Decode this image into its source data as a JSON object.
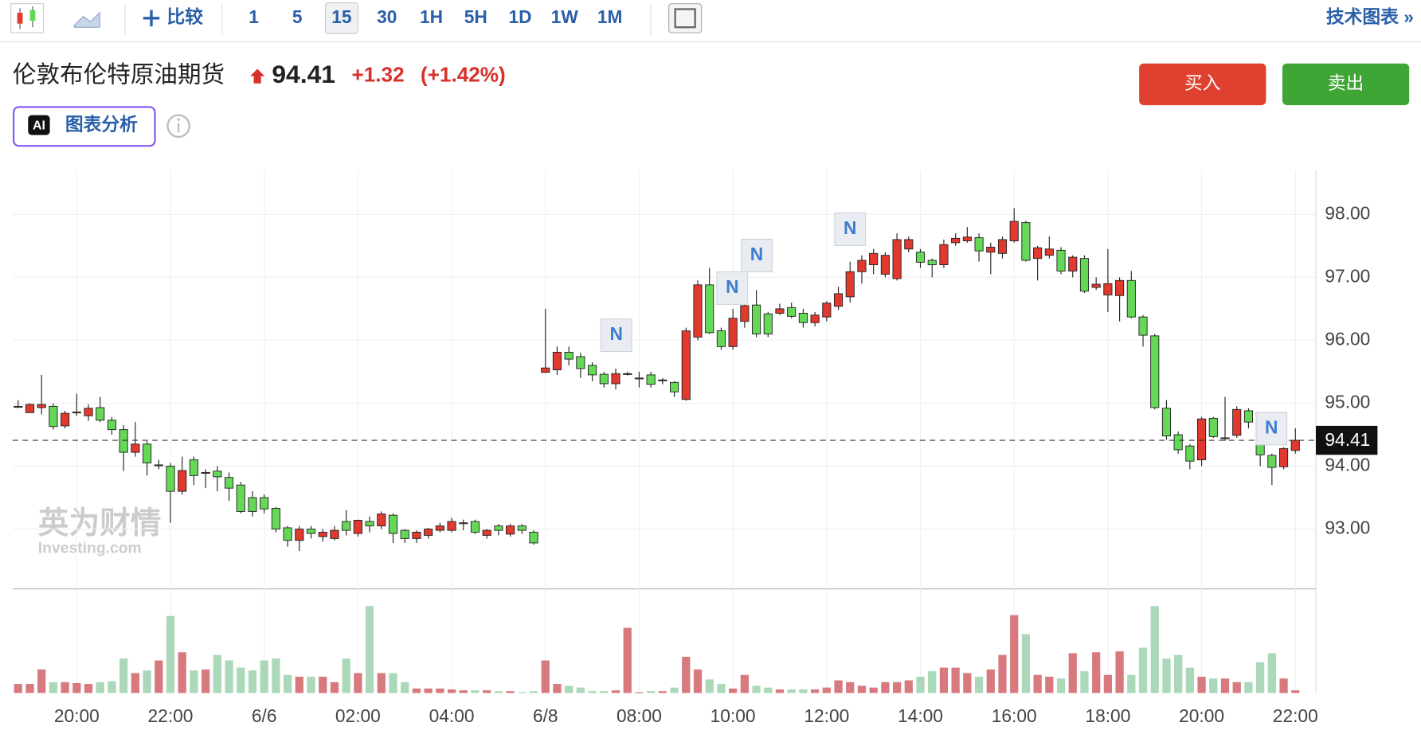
{
  "ui": {
    "compare": "比较",
    "intervals": [
      "1",
      "5",
      "15",
      "30",
      "1H",
      "5H",
      "1D",
      "1W",
      "1M"
    ],
    "tech_chart": "技术图表 »",
    "ai_badge": "AI",
    "ai_analysis": "图表分析",
    "buy": "买入",
    "sell": "卖出",
    "watermark_cn": "英为财情",
    "watermark_en": "Investing.com",
    "selected_interval": "15"
  },
  "chart_data": {
    "type": "candlestick",
    "title": "伦敦布伦特原油期货",
    "last_price": 94.41,
    "change": "+1.32",
    "change_pct": "(+1.42%)",
    "categories": [
      null,
      null,
      null,
      null,
      null,
      "20:00",
      null,
      null,
      null,
      null,
      null,
      null,
      null,
      "22:00",
      null,
      null,
      null,
      null,
      null,
      null,
      null,
      "6/6",
      null,
      null,
      null,
      null,
      null,
      null,
      null,
      "02:00",
      null,
      null,
      null,
      null,
      null,
      null,
      null,
      "04:00",
      null,
      null,
      null,
      null,
      null,
      null,
      null,
      "6/8",
      null,
      null,
      null,
      null,
      null,
      null,
      null,
      "08:00",
      null,
      null,
      null,
      null,
      null,
      null,
      null,
      "10:00",
      null,
      null,
      null,
      null,
      null,
      null,
      null,
      "12:00",
      null,
      null,
      null,
      null,
      null,
      null,
      null,
      "14:00",
      null,
      null,
      null,
      null,
      null,
      null,
      null,
      "16:00",
      null,
      null,
      null,
      null,
      null,
      null,
      null,
      "18:00",
      null,
      null,
      null,
      null,
      null,
      null,
      null,
      "20:00",
      null,
      null,
      null,
      null,
      null,
      null,
      null,
      "22:00"
    ],
    "open": [
      94.95,
      94.85,
      94.93,
      94.95,
      94.64,
      94.86,
      94.8,
      94.93,
      94.73,
      94.58,
      94.22,
      94.35,
      94.02,
      94.0,
      93.6,
      94.1,
      93.9,
      93.92,
      93.82,
      93.7,
      93.5,
      93.5,
      93.33,
      93.02,
      92.82,
      93.0,
      92.88,
      92.85,
      93.12,
      92.93,
      93.12,
      93.05,
      93.22,
      92.98,
      92.85,
      92.9,
      92.98,
      92.98,
      93.1,
      93.12,
      92.9,
      93.05,
      92.92,
      93.05,
      92.95,
      95.49,
      95.53,
      95.81,
      95.74,
      95.6,
      95.46,
      95.31,
      95.47,
      95.4,
      95.45,
      95.37,
      95.33,
      95.06,
      96.05,
      96.88,
      96.15,
      95.9,
      96.3,
      96.56,
      96.42,
      96.43,
      96.52,
      96.43,
      96.28,
      96.37,
      96.54,
      96.69,
      97.09,
      97.2,
      97.05,
      96.98,
      97.45,
      97.4,
      97.27,
      97.2,
      97.55,
      97.58,
      97.63,
      97.4,
      97.38,
      97.58,
      97.87,
      97.3,
      97.35,
      97.43,
      97.1,
      97.3,
      96.84,
      96.72,
      96.71,
      96.95,
      96.37,
      96.07,
      94.92,
      94.5,
      94.32,
      94.1,
      94.76,
      94.45,
      94.49,
      94.88,
      94.35,
      94.17,
      93.99,
      94.25
    ],
    "high": [
      95.05,
      95.0,
      95.45,
      95.0,
      94.88,
      95.15,
      94.98,
      95.1,
      94.78,
      94.65,
      94.7,
      94.4,
      94.1,
      94.05,
      94.15,
      94.15,
      93.95,
      94.0,
      93.9,
      93.75,
      93.6,
      93.55,
      93.35,
      93.05,
      93.05,
      93.05,
      93.0,
      93.05,
      93.3,
      93.15,
      93.2,
      93.28,
      93.25,
      93.0,
      92.98,
      93.02,
      93.1,
      93.18,
      93.15,
      93.15,
      93.0,
      93.08,
      93.08,
      93.08,
      92.98,
      96.5,
      95.9,
      95.9,
      95.8,
      95.65,
      95.5,
      95.55,
      95.5,
      95.5,
      95.5,
      95.4,
      95.35,
      96.2,
      96.95,
      97.15,
      96.2,
      96.5,
      96.6,
      96.8,
      96.45,
      96.58,
      96.6,
      96.5,
      96.45,
      96.62,
      96.85,
      97.25,
      97.35,
      97.45,
      97.4,
      97.7,
      97.65,
      97.45,
      97.3,
      97.6,
      97.7,
      97.8,
      97.7,
      97.55,
      97.65,
      98.1,
      97.9,
      97.5,
      97.65,
      97.48,
      97.35,
      97.35,
      97.0,
      97.45,
      97.0,
      97.1,
      96.4,
      96.1,
      95.05,
      94.55,
      94.35,
      94.78,
      94.78,
      95.1,
      94.95,
      94.92,
      94.42,
      94.2,
      94.3,
      94.6
    ],
    "low": [
      94.92,
      94.85,
      94.82,
      94.58,
      94.6,
      94.8,
      94.72,
      94.7,
      94.5,
      93.92,
      94.15,
      93.85,
      93.95,
      93.1,
      93.55,
      93.7,
      93.65,
      93.6,
      93.45,
      93.25,
      93.2,
      93.25,
      92.95,
      92.72,
      92.65,
      92.85,
      92.8,
      92.82,
      92.9,
      92.88,
      92.95,
      93.0,
      92.78,
      92.78,
      92.78,
      92.85,
      92.95,
      92.95,
      92.98,
      92.92,
      92.85,
      92.9,
      92.88,
      92.92,
      92.75,
      95.48,
      95.45,
      95.6,
      95.4,
      95.35,
      95.25,
      95.22,
      95.44,
      95.25,
      95.25,
      95.3,
      95.1,
      95.04,
      96.0,
      96.1,
      95.85,
      95.85,
      96.2,
      96.05,
      96.05,
      96.4,
      96.35,
      96.2,
      96.22,
      96.3,
      96.48,
      96.6,
      96.9,
      97.05,
      97.0,
      96.95,
      97.4,
      97.15,
      97.0,
      97.15,
      97.5,
      97.55,
      97.25,
      97.05,
      97.3,
      97.55,
      97.25,
      96.95,
      97.3,
      97.05,
      97.0,
      96.75,
      96.8,
      96.45,
      96.3,
      96.35,
      95.9,
      94.9,
      94.42,
      94.2,
      93.95,
      94.0,
      94.45,
      94.4,
      94.45,
      94.6,
      94.0,
      93.7,
      93.95,
      94.2
    ],
    "close": [
      94.95,
      94.98,
      94.98,
      94.63,
      94.84,
      94.86,
      94.92,
      94.73,
      94.58,
      94.22,
      94.35,
      94.05,
      94.02,
      93.6,
      93.93,
      93.85,
      93.9,
      93.83,
      93.65,
      93.28,
      93.28,
      93.32,
      93.0,
      92.82,
      93.0,
      92.93,
      92.95,
      92.98,
      92.98,
      93.14,
      93.05,
      93.24,
      92.93,
      92.85,
      92.95,
      93.0,
      93.05,
      93.12,
      93.1,
      92.95,
      92.98,
      92.98,
      93.05,
      92.98,
      92.78,
      95.56,
      95.81,
      95.7,
      95.55,
      95.45,
      95.31,
      95.47,
      95.47,
      95.4,
      95.3,
      95.37,
      95.18,
      96.15,
      96.88,
      96.12,
      95.9,
      96.35,
      96.55,
      96.1,
      96.1,
      96.5,
      96.38,
      96.28,
      96.4,
      96.59,
      96.74,
      97.09,
      97.27,
      97.38,
      97.35,
      97.6,
      97.6,
      97.24,
      97.2,
      97.52,
      97.62,
      97.64,
      97.42,
      97.48,
      97.6,
      97.89,
      97.27,
      97.47,
      97.45,
      97.1,
      97.32,
      96.78,
      96.89,
      96.9,
      96.95,
      96.37,
      96.08,
      94.93,
      94.48,
      94.26,
      94.08,
      94.75,
      94.47,
      94.45,
      94.9,
      94.7,
      94.18,
      93.98,
      94.28,
      94.41
    ],
    "volume": [
      10,
      10,
      26,
      12,
      12,
      11,
      10,
      12,
      13,
      38,
      22,
      25,
      36,
      85,
      45,
      25,
      26,
      42,
      36,
      28,
      25,
      36,
      38,
      20,
      18,
      18,
      18,
      12,
      38,
      22,
      96,
      22,
      22,
      12,
      5,
      5,
      5,
      4,
      3,
      3,
      3,
      2,
      2,
      1,
      2,
      36,
      10,
      8,
      6,
      2,
      2,
      3,
      72,
      1,
      2,
      2,
      6,
      40,
      26,
      15,
      10,
      5,
      20,
      8,
      6,
      4,
      4,
      4,
      4,
      6,
      14,
      12,
      8,
      6,
      12,
      12,
      14,
      18,
      24,
      28,
      28,
      22,
      18,
      26,
      42,
      86,
      65,
      20,
      18,
      16,
      44,
      24,
      45,
      20,
      46,
      20,
      50,
      96,
      38,
      42,
      28,
      18,
      16,
      16,
      12,
      12,
      34,
      44,
      16,
      3
    ],
    "ylim": [
      92.05,
      98.7
    ],
    "yticks": [
      {
        "value": 93,
        "label": "93.00"
      },
      {
        "value": 94,
        "label": "94.00"
      },
      {
        "value": 95,
        "label": "95.00"
      },
      {
        "value": 96,
        "label": "96.00"
      },
      {
        "value": 97,
        "label": "97.00"
      },
      {
        "value": 98,
        "label": "98.00"
      }
    ],
    "volume_ylim": [
      0,
      100
    ],
    "grid": true,
    "up_color": "#e2392f",
    "down_color": "#65d858",
    "volume_up_color": "#d7797d",
    "volume_down_color": "#aad8b8",
    "news_markers": [
      "N",
      "N",
      "N",
      "N",
      "N"
    ]
  }
}
